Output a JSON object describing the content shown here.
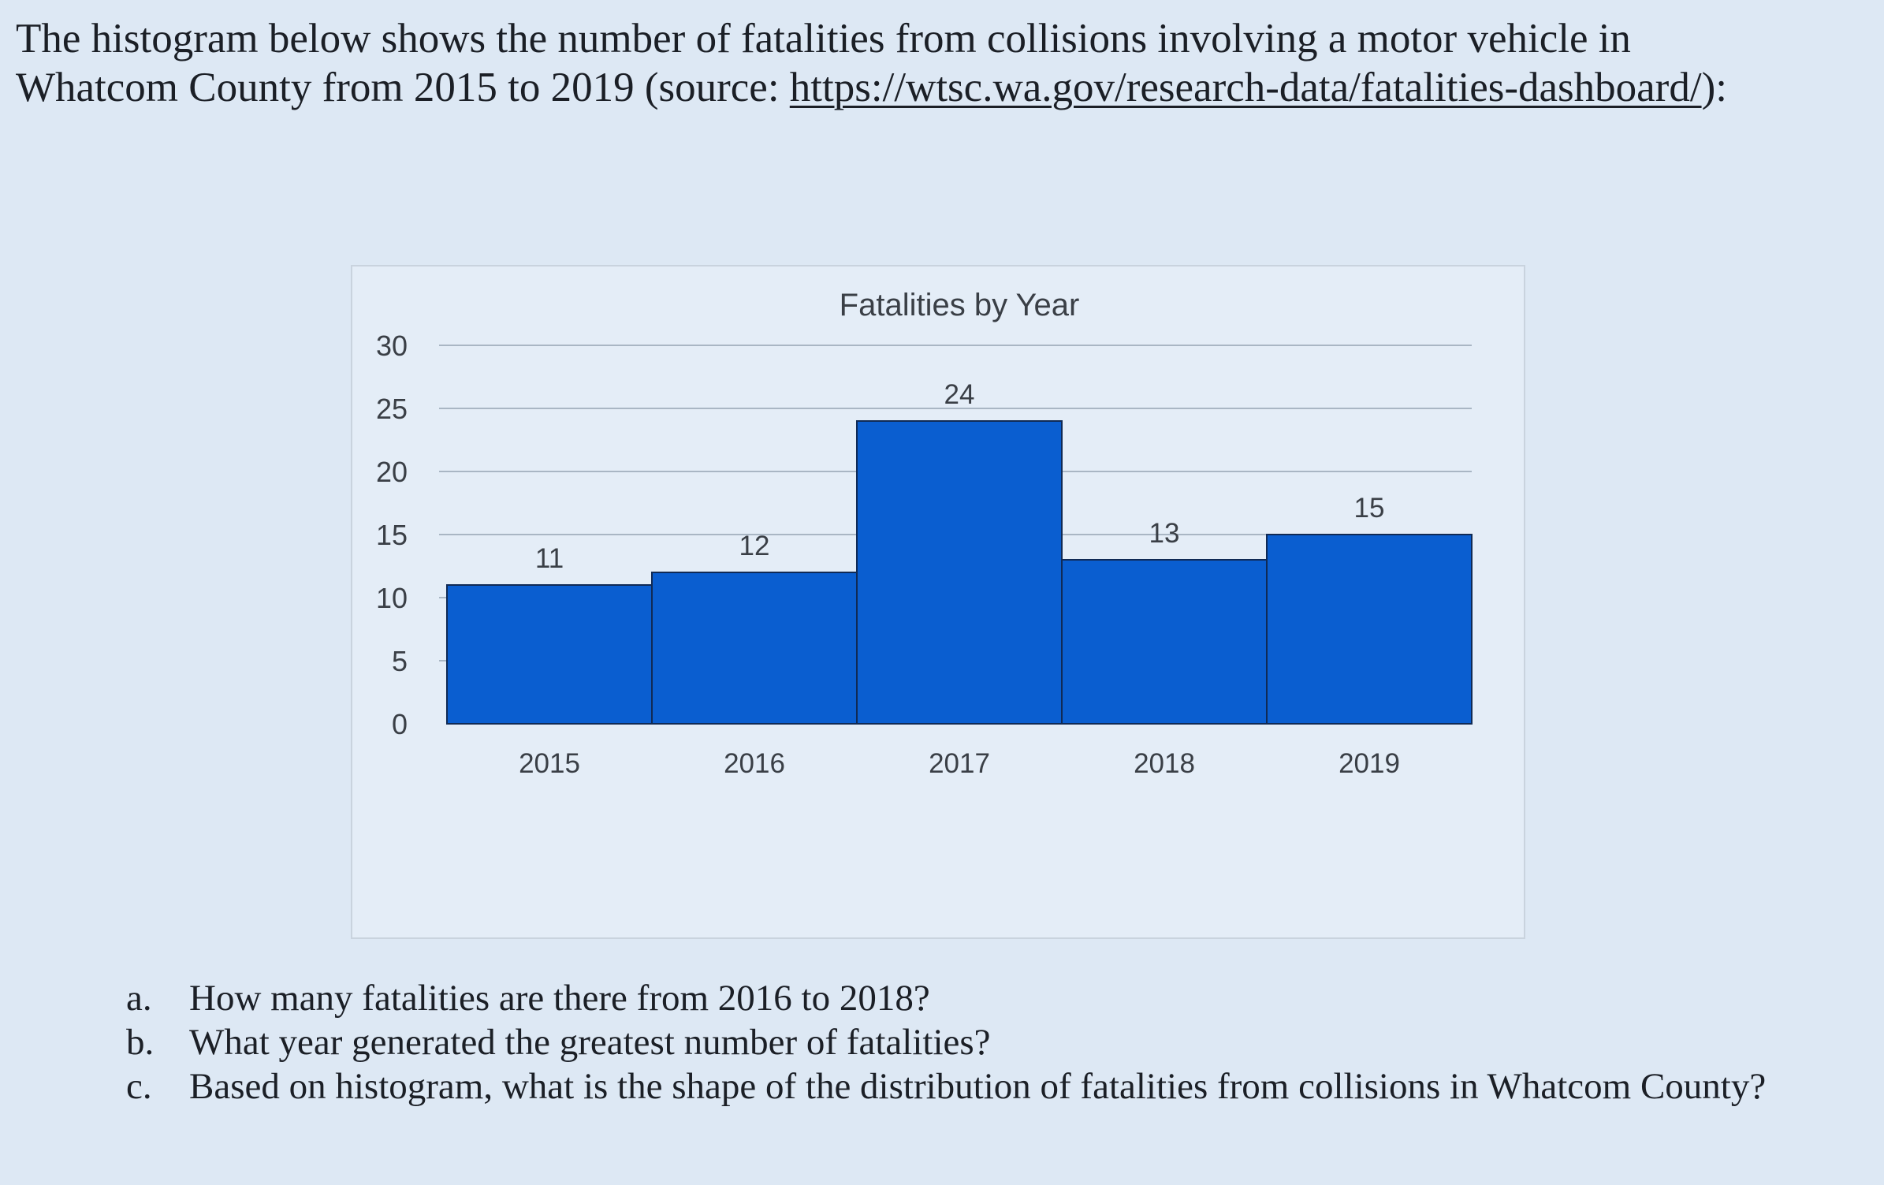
{
  "intro": {
    "text_before": "The histogram below shows the number of fatalities from collisions involving a motor vehicle in Whatcom County from 2015 to 2019 (source: ",
    "link_text": "https://wtsc.wa.gov/research-data/fatalities-dashboard/",
    "text_after": "):"
  },
  "chart_data": {
    "type": "bar",
    "title": "Fatalities by Year",
    "categories": [
      "2015",
      "2016",
      "2017",
      "2018",
      "2019"
    ],
    "values": [
      11,
      12,
      24,
      13,
      15
    ],
    "data_labels": [
      "11",
      "12",
      "24",
      "13",
      "15"
    ],
    "xlabel": "",
    "ylabel": "",
    "ylim": [
      0,
      30
    ],
    "yticks": [
      0,
      5,
      10,
      15,
      20,
      25,
      30
    ],
    "grid": true,
    "bar_gap": 0,
    "colors": {
      "bar_fill": "#0a5ed0",
      "bar_edge": "#102a55",
      "grid": "#a9b6c4",
      "text": "#3a3f46"
    }
  },
  "questions": [
    {
      "marker": "a.",
      "text": "How many fatalities are there from 2016 to 2018?"
    },
    {
      "marker": "b.",
      "text": "What year generated the greatest number of fatalities?"
    },
    {
      "marker": "c.",
      "text": "Based on histogram, what is the shape of the distribution of fatalities from collisions in Whatcom County?"
    }
  ]
}
